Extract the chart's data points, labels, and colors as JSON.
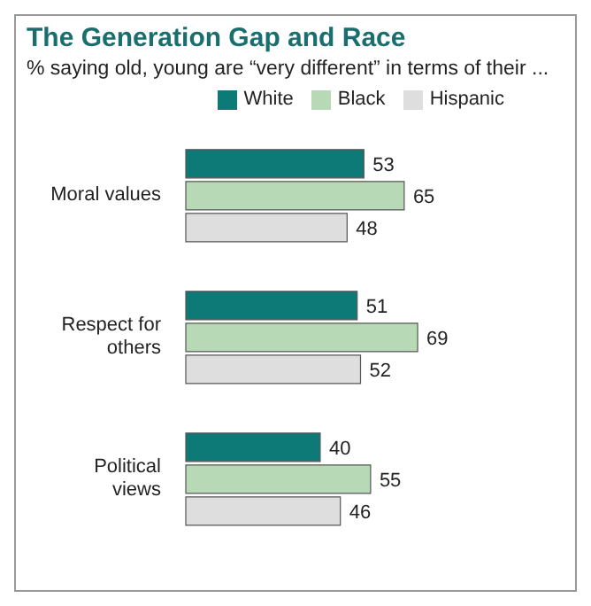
{
  "chart_data": {
    "type": "bar",
    "orientation": "horizontal",
    "title": "The Generation Gap and Race",
    "subtitle": "% saying old, young are “very different” in terms of their ...",
    "categories": [
      "Moral values",
      "Respect for others",
      "Political views"
    ],
    "series": [
      {
        "name": "White",
        "color": "#0e7a78",
        "values": [
          53,
          51,
          40
        ]
      },
      {
        "name": "Black",
        "color": "#b7d9b5",
        "values": [
          65,
          69,
          55
        ]
      },
      {
        "name": "Hispanic",
        "color": "#dedede",
        "values": [
          48,
          52,
          46
        ]
      }
    ],
    "data_labels": true,
    "legend": "top"
  }
}
